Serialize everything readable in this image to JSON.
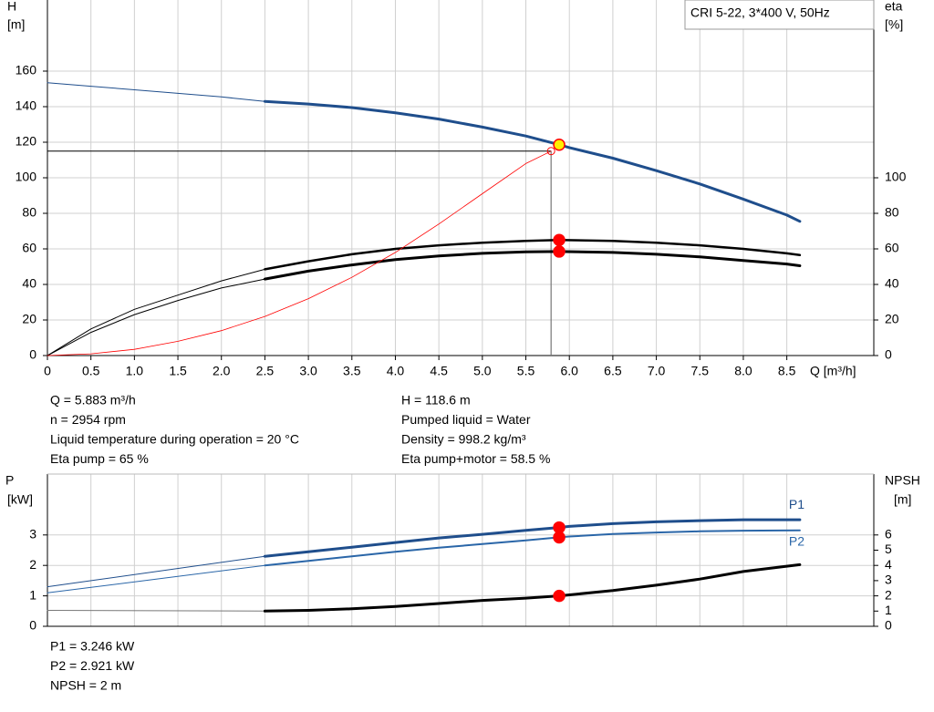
{
  "chart_data": [
    {
      "type": "line",
      "title": "CRI 5-22, 3*400 V, 50Hz",
      "ylabel": [
        "H",
        "[m]"
      ],
      "y2label": [
        "eta",
        "[%]"
      ],
      "xlabel": "Q [m³/h]",
      "xlim": [
        0,
        9.5
      ],
      "xticks": [
        0,
        0.5,
        {
          "value": 1,
          "label": "1.0"
        },
        1.5,
        {
          "value": 2,
          "label": "2.0"
        },
        2.5,
        {
          "value": 3,
          "label": "3.0"
        },
        3.5,
        {
          "value": 4,
          "label": "4.0"
        },
        4.5,
        {
          "value": 5,
          "label": "5.0"
        },
        5.5,
        {
          "value": 6,
          "label": "6.0"
        },
        6.5,
        {
          "value": 7,
          "label": "7.0"
        },
        7.5,
        {
          "value": 8,
          "label": "8.0"
        },
        8.5
      ],
      "ylim": [
        0,
        200
      ],
      "yticks": [
        0,
        20,
        40,
        60,
        80,
        100,
        120,
        140,
        160
      ],
      "y2lim": [
        0,
        200
      ],
      "y2ticks": [
        0,
        20,
        40,
        60,
        80,
        100
      ],
      "grid": true,
      "series": [
        {
          "color": "#1f4e8c",
          "width": 1,
          "x": [
            0,
            0.5,
            1,
            1.5,
            2,
            2.5
          ],
          "values": [
            153.5,
            151.5,
            149.5,
            147.5,
            145.5,
            143
          ]
        },
        {
          "color": "#1f4e8c",
          "width": 3,
          "x": [
            2.5,
            3,
            3.5,
            4,
            4.5,
            5,
            5.5,
            5.883,
            6,
            6.5,
            7,
            7.5,
            8,
            8.5,
            8.65
          ],
          "values": [
            143,
            141.5,
            139.5,
            136.5,
            133,
            128.5,
            123.5,
            118.6,
            117,
            111,
            104,
            96.5,
            88,
            79,
            75.5
          ]
        },
        {
          "color": "#000000",
          "width": 1,
          "axis": "y2",
          "x": [
            0,
            0.5,
            1,
            1.5,
            2,
            2.5
          ],
          "values": [
            0,
            15,
            26,
            34,
            42,
            48.5
          ]
        },
        {
          "color": "#000000",
          "width": 2.5,
          "axis": "y2",
          "x": [
            2.5,
            3,
            3.5,
            4,
            4.5,
            5,
            5.5,
            5.883,
            6.5,
            7,
            7.5,
            8,
            8.5,
            8.65
          ],
          "values": [
            48.5,
            53,
            57,
            60,
            62,
            63.5,
            64.5,
            65,
            64.5,
            63.5,
            62,
            60,
            57.5,
            56.5
          ]
        },
        {
          "color": "#000000",
          "width": 1,
          "axis": "y2",
          "x": [
            0,
            0.5,
            1,
            1.5,
            2,
            2.5
          ],
          "values": [
            0,
            13,
            23,
            31,
            38,
            43
          ]
        },
        {
          "color": "#000000",
          "width": 3,
          "axis": "y2",
          "x": [
            2.5,
            3,
            3.5,
            4,
            4.5,
            5,
            5.5,
            5.883,
            6.5,
            7,
            7.5,
            8,
            8.5,
            8.65
          ],
          "values": [
            43,
            47.5,
            51,
            54,
            56,
            57.5,
            58.3,
            58.5,
            58,
            57,
            55.5,
            53.5,
            51.5,
            50.5
          ]
        },
        {
          "color": "#ff0000",
          "width": 0.8,
          "end_marker": "open",
          "x": [
            0,
            0.5,
            1,
            1.5,
            2,
            2.5,
            3,
            3.5,
            4,
            4.5,
            5,
            5.5,
            5.79
          ],
          "values": [
            0,
            1,
            3.5,
            8,
            14,
            22,
            32,
            44,
            58,
            74,
            91,
            108,
            115
          ]
        }
      ],
      "guides": [
        {
          "x": 5.79,
          "y": 115
        }
      ],
      "markers": [
        {
          "x": 5.883,
          "y": 65,
          "axis": "y2",
          "fill": "#ff0000",
          "stroke": "#ff0000"
        },
        {
          "x": 5.883,
          "y": 58.5,
          "axis": "y2",
          "fill": "#ff0000",
          "stroke": "#ff0000"
        },
        {
          "x": 5.883,
          "y": 118.6,
          "fill": "#ffee00",
          "stroke": "#ff0000"
        }
      ]
    },
    {
      "type": "line",
      "ylabel": [
        "P",
        "[kW]"
      ],
      "y2label": [
        "NPSH",
        "[m]"
      ],
      "xlim": [
        0,
        9.5
      ],
      "xgrid": [
        0,
        0.5,
        1,
        1.5,
        2,
        2.5,
        3,
        3.5,
        4,
        4.5,
        5,
        5.5,
        6,
        6.5,
        7,
        7.5,
        8,
        8.5
      ],
      "ylim": [
        0,
        5
      ],
      "yticks": [
        0,
        1,
        2,
        3
      ],
      "y2lim": [
        0,
        10
      ],
      "y2ticks": [
        0,
        1,
        2,
        3,
        4,
        5,
        6
      ],
      "grid": true,
      "series": [
        {
          "color": "#1f4e8c",
          "width": 1,
          "x": [
            0,
            2.5
          ],
          "values": [
            1.3,
            2.3
          ]
        },
        {
          "color": "#1f4e8c",
          "width": 3,
          "label": "P1",
          "x": [
            2.5,
            3,
            3.5,
            4,
            4.5,
            5,
            5.5,
            5.883,
            6,
            6.5,
            7,
            7.5,
            8,
            8.65
          ],
          "values": [
            2.3,
            2.45,
            2.6,
            2.75,
            2.9,
            3.02,
            3.15,
            3.246,
            3.28,
            3.37,
            3.43,
            3.47,
            3.5,
            3.5
          ]
        },
        {
          "color": "#2a66a8",
          "width": 1,
          "x": [
            0,
            2.5
          ],
          "values": [
            1.1,
            2.0
          ]
        },
        {
          "color": "#2a66a8",
          "width": 2,
          "label": "P2",
          "x": [
            2.5,
            3,
            3.5,
            4,
            4.5,
            5,
            5.5,
            5.883,
            6,
            6.5,
            7,
            7.5,
            8,
            8.65
          ],
          "values": [
            2.0,
            2.15,
            2.3,
            2.45,
            2.58,
            2.7,
            2.82,
            2.921,
            2.95,
            3.03,
            3.08,
            3.12,
            3.14,
            3.15
          ]
        },
        {
          "color": "#777777",
          "width": 1,
          "axis": "y2",
          "x": [
            0,
            2.5
          ],
          "values": [
            1.05,
            1.0
          ]
        },
        {
          "color": "#000000",
          "width": 3,
          "axis": "y2",
          "x": [
            2.5,
            3,
            3.5,
            4,
            4.5,
            5,
            5.5,
            5.883,
            6.5,
            7,
            7.5,
            8,
            8.65
          ],
          "values": [
            1.0,
            1.05,
            1.15,
            1.3,
            1.5,
            1.7,
            1.85,
            2.0,
            2.35,
            2.7,
            3.1,
            3.6,
            4.05
          ]
        }
      ],
      "markers": [
        {
          "x": 5.883,
          "y": 3.246,
          "fill": "#ff0000",
          "stroke": "#ff0000"
        },
        {
          "x": 5.883,
          "y": 2.921,
          "fill": "#ff0000",
          "stroke": "#ff0000"
        },
        {
          "x": 5.883,
          "y": 2,
          "axis": "y2",
          "fill": "#ff0000",
          "stroke": "#ff0000"
        }
      ]
    }
  ],
  "info": {
    "top_left": [
      "Q = 5.883 m³/h",
      "n = 2954 rpm",
      "Liquid temperature during operation = 20 °C",
      "Eta pump = 65 %"
    ],
    "top_right": [
      "H = 118.6 m",
      "Pumped liquid = Water",
      "Density = 998.2 kg/m³",
      "Eta pump+motor = 58.5 %"
    ],
    "bottom": [
      "P1 = 3.246 kW",
      "P2 = 2.921 kW",
      "NPSH = 2 m"
    ]
  }
}
